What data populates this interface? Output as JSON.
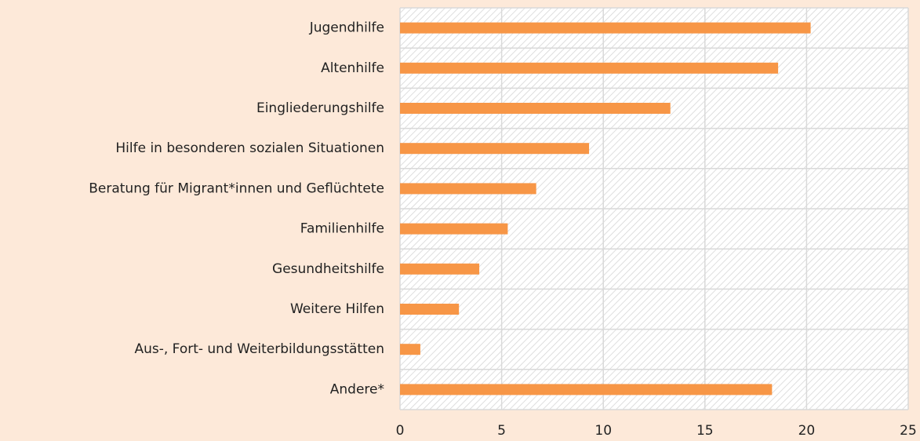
{
  "chart_data": {
    "type": "bar",
    "orientation": "horizontal",
    "categories": [
      "Jugendhilfe",
      "Altenhilfe",
      "Eingliederungshilfe",
      "Hilfe in besonderen sozialen Situationen",
      "Beratung für Migrant*innen und Geflüchtete",
      "Familienhilfe",
      "Gesundheitshilfe",
      "Weitere Hilfen",
      "Aus-, Fort- und Weiterbildungsstätten",
      "Andere*"
    ],
    "values": [
      20.2,
      18.6,
      13.3,
      9.3,
      6.7,
      5.3,
      3.9,
      2.9,
      1.0,
      18.3
    ],
    "color": "#f79646",
    "xlim": [
      0,
      25
    ],
    "xticks": [
      0,
      5,
      10,
      15,
      20,
      25
    ],
    "grid": true
  }
}
